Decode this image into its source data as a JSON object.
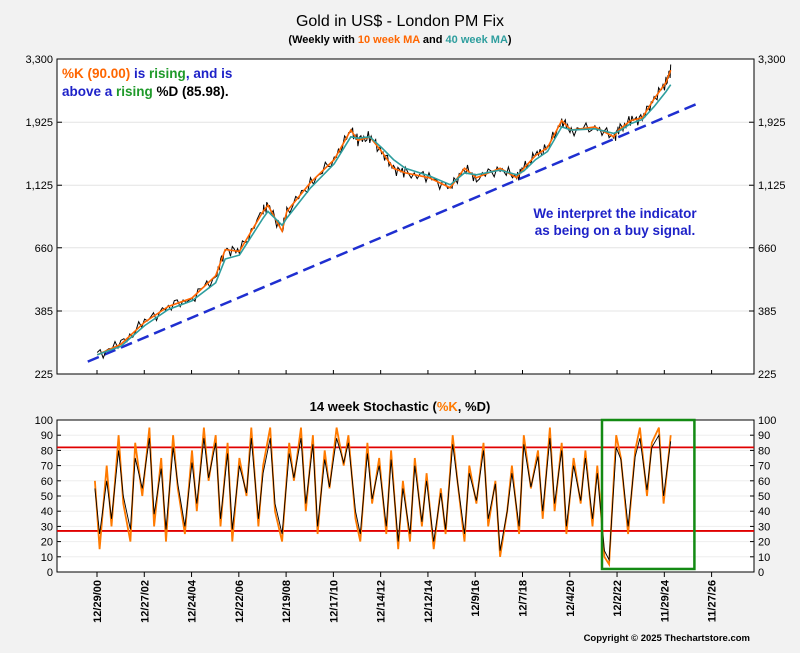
{
  "title": "Gold in US$ - London PM Fix",
  "subtitle": {
    "prefix": "(Weekly with ",
    "ma10": "10 week MA",
    "mid": " and ",
    "ma40": "40 week MA",
    "suffix": ")"
  },
  "annotation_top": {
    "k_label": "%K (90.00)",
    "is": " is ",
    "rising": "rising",
    "and_is": ", and is",
    "above_a": "above a ",
    "rising2": "rising",
    "d_label": " %D (85.98)."
  },
  "annotation_buy": {
    "line1": "We interpret the indicator",
    "line2": "as being on a buy signal."
  },
  "stoch_title": {
    "prefix": "14 week Stochastic (",
    "k": "%K",
    "comma": ", ",
    "d": "%D",
    "suffix": ")"
  },
  "copyright": "Copyright © 2025 Thechartstore.com",
  "colors": {
    "background": "#f2f2f2",
    "price": "#000000",
    "ma10": "#ff6600",
    "ma40": "#2e9e9e",
    "trendline": "#1f2fd0",
    "k_line": "#ff7a00",
    "d_line": "#000000",
    "threshold": "#e00000",
    "highlight_box": "#138a13",
    "note_blue": "#1e22c8",
    "note_green": "#1f9a2a",
    "note_orange": "#ff6600"
  },
  "chart_data": [
    {
      "type": "line",
      "title": "Gold in US$ - London PM Fix",
      "scale": "log",
      "ylim": [
        225,
        3300
      ],
      "y_ticks": [
        "3,300",
        "1,925",
        "1,125",
        "660",
        "385",
        "225"
      ],
      "x_tick_labels": [
        "12/29/00",
        "12/27/02",
        "12/24/04",
        "12/22/06",
        "12/19/08",
        "12/17/10",
        "12/14/12",
        "12/12/14",
        "12/9/16",
        "12/7/18",
        "12/4/20",
        "12/2/22",
        "11/29/24",
        "11/27/26"
      ],
      "series": [
        {
          "name": "10 week MA",
          "x": [
            2001.0,
            2002.0,
            2003.0,
            2004.0,
            2005.0,
            2006.0,
            2006.4,
            2007.0,
            2008.0,
            2008.2,
            2008.8,
            2009.0,
            2010.0,
            2011.0,
            2011.7,
            2012.0,
            2012.5,
            2013.0,
            2013.5,
            2014.0,
            2015.0,
            2015.9,
            2016.5,
            2017.0,
            2018.0,
            2018.7,
            2019.0,
            2019.5,
            2020.0,
            2020.6,
            2021.0,
            2022.0,
            2022.8,
            2023.0,
            2023.5,
            2024.0,
            2024.5,
            2025.0,
            2025.2
          ],
          "values": [
            265,
            290,
            350,
            400,
            430,
            520,
            650,
            640,
            900,
            950,
            760,
            900,
            1150,
            1400,
            1800,
            1650,
            1700,
            1500,
            1300,
            1250,
            1200,
            1100,
            1300,
            1200,
            1300,
            1200,
            1300,
            1450,
            1550,
            1950,
            1800,
            1850,
            1700,
            1800,
            1950,
            2000,
            2350,
            2700,
            3000
          ]
        },
        {
          "name": "40 week MA",
          "x": [
            2001.0,
            2002.0,
            2003.0,
            2004.0,
            2005.0,
            2006.0,
            2006.4,
            2007.0,
            2008.0,
            2008.2,
            2008.8,
            2009.0,
            2010.0,
            2011.0,
            2011.7,
            2012.0,
            2012.5,
            2013.0,
            2013.5,
            2014.0,
            2015.0,
            2015.9,
            2016.5,
            2017.0,
            2018.0,
            2018.7,
            2019.0,
            2019.5,
            2020.0,
            2020.6,
            2021.0,
            2022.0,
            2022.8,
            2023.0,
            2023.5,
            2024.0,
            2024.5,
            2025.0,
            2025.2
          ],
          "values": [
            265,
            285,
            340,
            390,
            420,
            490,
            600,
            620,
            850,
            900,
            800,
            850,
            1100,
            1350,
            1700,
            1680,
            1700,
            1550,
            1400,
            1300,
            1220,
            1130,
            1250,
            1230,
            1280,
            1230,
            1270,
            1400,
            1500,
            1850,
            1800,
            1820,
            1750,
            1780,
            1900,
            1970,
            2200,
            2500,
            2650
          ]
        }
      ],
      "trendline": {
        "x": [
          2000.6,
          2026.3
        ],
        "values": [
          250,
          2250
        ]
      },
      "annotations": [
        "%K (90.00) is rising, and is above a rising %D (85.98).",
        "We interpret the indicator as being on a buy signal."
      ]
    },
    {
      "type": "line",
      "title": "14 week Stochastic (%K, %D)",
      "ylim": [
        0,
        100
      ],
      "y_ticks": [
        0,
        10,
        20,
        30,
        40,
        50,
        60,
        70,
        80,
        90,
        100
      ],
      "thresholds": [
        82,
        27
      ],
      "series": [
        {
          "name": "%K",
          "x": [
            2000.9,
            2001.1,
            2001.4,
            2001.6,
            2001.9,
            2002.1,
            2002.4,
            2002.6,
            2002.9,
            2003.2,
            2003.4,
            2003.7,
            2003.9,
            2004.2,
            2004.4,
            2004.7,
            2005.0,
            2005.2,
            2005.5,
            2005.7,
            2006.0,
            2006.2,
            2006.5,
            2006.7,
            2007.0,
            2007.3,
            2007.5,
            2007.8,
            2008.0,
            2008.3,
            2008.5,
            2008.8,
            2009.1,
            2009.3,
            2009.6,
            2009.8,
            2010.1,
            2010.3,
            2010.6,
            2010.8,
            2011.1,
            2011.4,
            2011.6,
            2011.9,
            2012.1,
            2012.4,
            2012.6,
            2012.9,
            2013.2,
            2013.4,
            2013.7,
            2013.9,
            2014.2,
            2014.4,
            2014.7,
            2014.9,
            2015.2,
            2015.5,
            2015.7,
            2016.0,
            2016.2,
            2016.5,
            2016.7,
            2017.0,
            2017.3,
            2017.5,
            2017.8,
            2018.0,
            2018.3,
            2018.5,
            2018.8,
            2019.0,
            2019.3,
            2019.6,
            2019.8,
            2020.1,
            2020.3,
            2020.6,
            2020.8,
            2021.1,
            2021.4,
            2021.6,
            2021.9,
            2022.1,
            2022.4,
            2022.6,
            2022.9,
            2023.1,
            2023.4,
            2023.7,
            2023.9,
            2024.2,
            2024.4,
            2024.7,
            2024.9,
            2025.2
          ],
          "values": [
            60,
            15,
            70,
            30,
            90,
            45,
            20,
            85,
            50,
            95,
            30,
            75,
            20,
            90,
            55,
            25,
            80,
            40,
            95,
            60,
            90,
            30,
            85,
            20,
            75,
            50,
            95,
            30,
            70,
            95,
            40,
            20,
            85,
            60,
            95,
            40,
            90,
            25,
            80,
            55,
            95,
            70,
            90,
            35,
            20,
            85,
            45,
            75,
            25,
            80,
            15,
            60,
            20,
            75,
            30,
            65,
            15,
            55,
            25,
            90,
            60,
            20,
            70,
            45,
            85,
            30,
            60,
            10,
            40,
            70,
            25,
            90,
            55,
            80,
            35,
            95,
            40,
            85,
            25,
            75,
            45,
            80,
            30,
            70,
            10,
            5,
            90,
            75,
            25,
            80,
            95,
            50,
            85,
            95,
            45,
            90
          ]
        },
        {
          "name": "%D",
          "x": [
            2000.9,
            2001.1,
            2001.4,
            2001.6,
            2001.9,
            2002.1,
            2002.4,
            2002.6,
            2002.9,
            2003.2,
            2003.4,
            2003.7,
            2003.9,
            2004.2,
            2004.4,
            2004.7,
            2005.0,
            2005.2,
            2005.5,
            2005.7,
            2006.0,
            2006.2,
            2006.5,
            2006.7,
            2007.0,
            2007.3,
            2007.5,
            2007.8,
            2008.0,
            2008.3,
            2008.5,
            2008.8,
            2009.1,
            2009.3,
            2009.6,
            2009.8,
            2010.1,
            2010.3,
            2010.6,
            2010.8,
            2011.1,
            2011.4,
            2011.6,
            2011.9,
            2012.1,
            2012.4,
            2012.6,
            2012.9,
            2013.2,
            2013.4,
            2013.7,
            2013.9,
            2014.2,
            2014.4,
            2014.7,
            2014.9,
            2015.2,
            2015.5,
            2015.7,
            2016.0,
            2016.2,
            2016.5,
            2016.7,
            2017.0,
            2017.3,
            2017.5,
            2017.8,
            2018.0,
            2018.3,
            2018.5,
            2018.8,
            2019.0,
            2019.3,
            2019.6,
            2019.8,
            2020.1,
            2020.3,
            2020.6,
            2020.8,
            2021.1,
            2021.4,
            2021.6,
            2021.9,
            2022.1,
            2022.4,
            2022.6,
            2022.9,
            2023.1,
            2023.4,
            2023.7,
            2023.9,
            2024.2,
            2024.4,
            2024.7,
            2024.9,
            2025.2
          ],
          "values": [
            55,
            25,
            60,
            35,
            80,
            50,
            28,
            75,
            55,
            88,
            38,
            68,
            28,
            82,
            58,
            30,
            72,
            45,
            88,
            62,
            85,
            35,
            78,
            28,
            70,
            52,
            88,
            35,
            65,
            88,
            45,
            25,
            78,
            62,
            88,
            45,
            84,
            30,
            74,
            56,
            88,
            72,
            85,
            40,
            25,
            78,
            48,
            70,
            30,
            74,
            20,
            55,
            25,
            70,
            33,
            60,
            20,
            52,
            28,
            84,
            60,
            25,
            65,
            47,
            80,
            35,
            58,
            14,
            40,
            65,
            30,
            84,
            56,
            76,
            40,
            88,
            45,
            80,
            30,
            70,
            47,
            75,
            35,
            65,
            14,
            8,
            82,
            74,
            30,
            76,
            88,
            54,
            82,
            90,
            50,
            86
          ]
        }
      ],
      "highlight_box": {
        "x": [
          2022.3,
          2026.2
        ],
        "y": [
          2,
          100
        ]
      }
    }
  ]
}
